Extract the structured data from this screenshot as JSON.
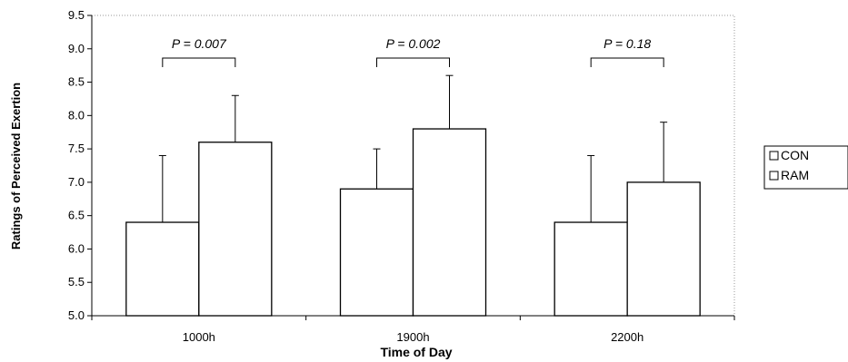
{
  "chart_data": {
    "type": "bar",
    "title": "",
    "xlabel": "Time of Day",
    "ylabel": "Ratings of Perceived Exertion",
    "ylim": [
      5.0,
      9.5
    ],
    "yticks": [
      "5.0",
      "5.5",
      "6.0",
      "6.5",
      "7.0",
      "7.5",
      "8.0",
      "8.5",
      "9.0",
      "9.5"
    ],
    "categories": [
      "1000h",
      "1900h",
      "2200h"
    ],
    "series": [
      {
        "name": "CON",
        "values": [
          6.4,
          6.9,
          6.4
        ],
        "errors": [
          1.0,
          0.6,
          1.0
        ],
        "color": "#ffffff"
      },
      {
        "name": "RAM",
        "values": [
          7.6,
          7.8,
          7.0
        ],
        "errors": [
          0.7,
          0.8,
          0.9
        ],
        "color": "#ffffff"
      }
    ],
    "annotations": [
      "P = 0.007",
      "P = 0.002",
      "P = 0.18"
    ],
    "legend_position": "right",
    "grid": false
  }
}
